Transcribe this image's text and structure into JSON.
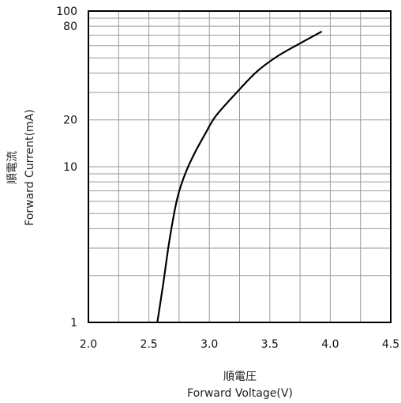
{
  "chart_data": {
    "type": "line",
    "title": "",
    "xlabel_jp": "順電圧",
    "xlabel": "Forward Voltage(V)",
    "ylabel_jp": "順電流",
    "ylabel": "Forward Current(mA)",
    "xlim": [
      2.0,
      4.5
    ],
    "ylim": [
      1,
      100
    ],
    "y_scale": "log",
    "grid": true,
    "legend": "none",
    "x_ticks": [
      2.0,
      2.5,
      3.0,
      3.5,
      4.0,
      4.5
    ],
    "x_tick_labels": [
      "2.0",
      "2.5",
      "3.0",
      "3.5",
      "4.0",
      "4.5"
    ],
    "y_ticks": [
      1,
      10,
      20,
      80,
      100
    ],
    "y_tick_labels": [
      "1",
      "10",
      "20",
      "80",
      "100"
    ],
    "line_color": "#000000",
    "series": [
      {
        "x": [
          2.57,
          2.62,
          2.66,
          2.7,
          2.74,
          2.8,
          2.88,
          2.97,
          3.05,
          3.2,
          3.38,
          3.55,
          3.75,
          3.93
        ],
        "values": [
          1.0,
          1.8,
          3.0,
          4.6,
          6.5,
          9.0,
          12.3,
          16.5,
          21.0,
          28.5,
          40.0,
          50.5,
          62.0,
          74.0
        ]
      }
    ]
  }
}
